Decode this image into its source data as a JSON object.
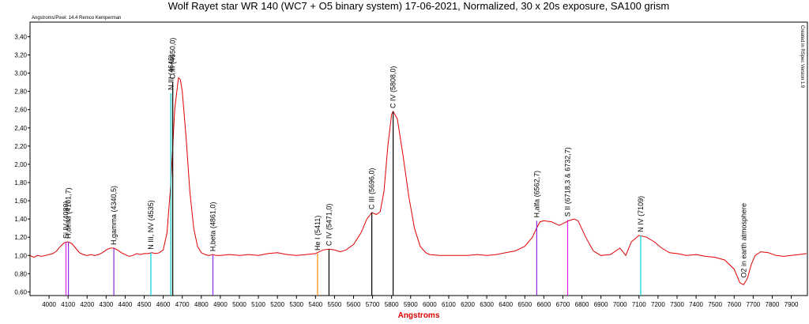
{
  "chart_data": {
    "type": "line",
    "title": "Wolf Rayet star WR 140 (WC7 + O5 binary system) 17-06-2021, Normalized, 30 x 20s exposure, SA100 grism",
    "corner_note": "Angstroms/Pixel: 14.4 Remco Kemperman",
    "side_note": "Created in RSpec Version 1.9",
    "x_label": "Angstroms",
    "color": "#e00000",
    "xlim": [
      3900,
      7985
    ],
    "ylim": [
      0.56,
      3.56
    ],
    "xticks": [
      4000,
      4100,
      4200,
      4300,
      4400,
      4500,
      4600,
      4700,
      4800,
      4900,
      5000,
      5100,
      5200,
      5300,
      5400,
      5500,
      5600,
      5700,
      5800,
      5900,
      6000,
      6100,
      6200,
      6300,
      6400,
      6500,
      6600,
      6700,
      6800,
      6900,
      7000,
      7100,
      7200,
      7300,
      7400,
      7500,
      7600,
      7700,
      7800,
      7900
    ],
    "yticks": [
      {
        "value": 0.6,
        "label": "0,60"
      },
      {
        "value": 0.8,
        "label": "0,80"
      },
      {
        "value": 1.0,
        "label": "1,00"
      },
      {
        "value": 1.2,
        "label": "1,20"
      },
      {
        "value": 1.4,
        "label": "1,40"
      },
      {
        "value": 1.6,
        "label": "1,60"
      },
      {
        "value": 1.8,
        "label": "1,80"
      },
      {
        "value": 2.0,
        "label": "2,00"
      },
      {
        "value": 2.2,
        "label": "2,20"
      },
      {
        "value": 2.4,
        "label": "2,40"
      },
      {
        "value": 2.6,
        "label": "2,60"
      },
      {
        "value": 2.8,
        "label": "2,80"
      },
      {
        "value": 3.0,
        "label": "3,00"
      },
      {
        "value": 3.2,
        "label": "3,20"
      },
      {
        "value": 3.4,
        "label": "3,40"
      }
    ],
    "x": [
      3900,
      3920,
      3940,
      3960,
      3980,
      4000,
      4020,
      4040,
      4060,
      4080,
      4100,
      4120,
      4140,
      4160,
      4180,
      4200,
      4220,
      4240,
      4260,
      4280,
      4300,
      4320,
      4340,
      4360,
      4380,
      4400,
      4420,
      4440,
      4460,
      4480,
      4500,
      4520,
      4540,
      4560,
      4580,
      4600,
      4620,
      4640,
      4660,
      4680,
      4690,
      4700,
      4720,
      4740,
      4760,
      4780,
      4800,
      4820,
      4840,
      4860,
      4880,
      4900,
      4950,
      5000,
      5050,
      5100,
      5150,
      5200,
      5250,
      5300,
      5350,
      5400,
      5420,
      5440,
      5470,
      5500,
      5530,
      5560,
      5600,
      5640,
      5670,
      5696,
      5720,
      5740,
      5760,
      5780,
      5800,
      5808,
      5830,
      5860,
      5890,
      5920,
      5950,
      5980,
      6000,
      6050,
      6100,
      6150,
      6200,
      6250,
      6300,
      6350,
      6400,
      6450,
      6500,
      6540,
      6562,
      6580,
      6600,
      6640,
      6680,
      6700,
      6730,
      6760,
      6780,
      6820,
      6860,
      6900,
      6950,
      7000,
      7030,
      7060,
      7100,
      7140,
      7180,
      7220,
      7260,
      7300,
      7350,
      7400,
      7450,
      7500,
      7550,
      7600,
      7630,
      7650,
      7670,
      7690,
      7710,
      7740,
      7780,
      7820,
      7860,
      7900,
      7940,
      7980
    ],
    "values": [
      1.0,
      0.98,
      1.0,
      0.99,
      1.0,
      1.01,
      1.02,
      1.05,
      1.1,
      1.14,
      1.15,
      1.13,
      1.08,
      1.03,
      1.01,
      1.0,
      1.01,
      1.0,
      1.01,
      1.03,
      1.06,
      1.08,
      1.08,
      1.06,
      1.03,
      1.01,
      0.99,
      1.0,
      1.02,
      1.01,
      1.02,
      1.02,
      1.03,
      1.02,
      1.03,
      1.06,
      1.25,
      1.8,
      2.6,
      2.95,
      2.93,
      2.8,
      2.3,
      1.7,
      1.3,
      1.1,
      1.03,
      1.01,
      1.0,
      1.01,
      1.0,
      1.0,
      1.01,
      1.0,
      1.01,
      1.0,
      1.02,
      1.03,
      1.01,
      1.0,
      1.01,
      1.02,
      1.04,
      1.06,
      1.07,
      1.06,
      1.04,
      1.06,
      1.12,
      1.25,
      1.4,
      1.47,
      1.45,
      1.48,
      1.7,
      2.2,
      2.55,
      2.58,
      2.5,
      2.1,
      1.65,
      1.3,
      1.1,
      1.03,
      1.01,
      1.0,
      1.0,
      1.0,
      1.0,
      1.01,
      1.0,
      1.01,
      1.03,
      1.05,
      1.1,
      1.2,
      1.3,
      1.37,
      1.38,
      1.37,
      1.33,
      1.35,
      1.38,
      1.4,
      1.38,
      1.2,
      1.05,
      1.0,
      1.01,
      1.08,
      1.0,
      1.15,
      1.22,
      1.2,
      1.15,
      1.08,
      1.03,
      1.02,
      1.0,
      1.01,
      0.99,
      0.98,
      0.95,
      0.85,
      0.7,
      0.68,
      0.75,
      0.9,
      1.0,
      1.04,
      1.03,
      1.0,
      0.99,
      1.0,
      1.01,
      1.02
    ],
    "annotations": [
      {
        "text": "Si IV (4089)",
        "x": 4089,
        "y": 1.15,
        "color": "#e020e0"
      },
      {
        "text": "H,delta (4101,7)",
        "x": 4101.7,
        "y": 1.15,
        "color": "#8a2be2"
      },
      {
        "text": "H,gamma (4340,5)",
        "x": 4340.5,
        "y": 1.08,
        "color": "#8a2be2"
      },
      {
        "text": "N III, NV (4535)",
        "x": 4535,
        "y": 1.03,
        "color": "#00d0e0"
      },
      {
        "text": "N III (4640)",
        "x": 4640,
        "y": 2.78,
        "color": "#00c0c0"
      },
      {
        "text": "C III (4650,0)",
        "x": 4650,
        "y": 2.9,
        "color": "#000000"
      },
      {
        "text": "H,beta (4861,0)",
        "x": 4861,
        "y": 1.01,
        "color": "#8a2be2"
      },
      {
        "text": "He I (5411)",
        "x": 5411,
        "y": 1.02,
        "color": "#ff8c00"
      },
      {
        "text": "C IV (5471,0)",
        "x": 5471,
        "y": 1.07,
        "color": "#000000"
      },
      {
        "text": "C III (5696,0)",
        "x": 5696,
        "y": 1.47,
        "color": "#000000"
      },
      {
        "text": "C IV (5808,0)",
        "x": 5808,
        "y": 2.58,
        "color": "#000000"
      },
      {
        "text": "H,alfa (6562,7)",
        "x": 6562.7,
        "y": 1.38,
        "color": "#8a2be2"
      },
      {
        "text": "S II (6718,3 & 6732,7)",
        "x": 6725,
        "y": 1.39,
        "color": "#e020e0"
      },
      {
        "text": "N IV (7109)",
        "x": 7109,
        "y": 1.22,
        "color": "#00d0e0"
      },
      {
        "text": "O2 in earth atmosphere",
        "x": 7650,
        "y": 0.72
      }
    ]
  }
}
